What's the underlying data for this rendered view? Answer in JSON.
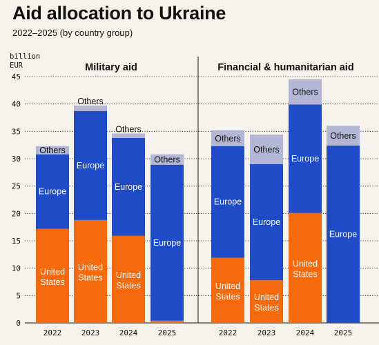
{
  "header": {
    "title": "Aid allocation to Ukraine",
    "subtitle": "2022–2025 (by country group)",
    "unit_line1": "billion",
    "unit_line2": "EUR"
  },
  "colors": {
    "united_states": "#f46a0c",
    "europe": "#1f4bc6",
    "others": "#b3b6d4",
    "background": "#f6f3ec"
  },
  "chart_data": [
    {
      "type": "bar",
      "stacked": true,
      "title": "Military aid",
      "categories": [
        "2022",
        "2023",
        "2024",
        "2025"
      ],
      "ylim": [
        0,
        45
      ],
      "yticks": [
        0,
        5,
        10,
        15,
        20,
        25,
        30,
        35,
        40,
        45
      ],
      "series": [
        {
          "name": "United States",
          "values": [
            17.2,
            18.8,
            15.9,
            0.4
          ]
        },
        {
          "name": "Europe",
          "values": [
            13.6,
            19.9,
            17.9,
            28.5
          ]
        },
        {
          "name": "Others",
          "values": [
            1.5,
            1.0,
            0.8,
            1.9
          ]
        }
      ]
    },
    {
      "type": "bar",
      "stacked": true,
      "title": "Financial & humanitarian aid",
      "categories": [
        "2022",
        "2023",
        "2024",
        "2025"
      ],
      "ylim": [
        0,
        45
      ],
      "series": [
        {
          "name": "United States",
          "values": [
            11.9,
            7.8,
            20.1,
            0
          ]
        },
        {
          "name": "Europe",
          "values": [
            20.4,
            21.2,
            19.8,
            32.4
          ]
        },
        {
          "name": "Others",
          "values": [
            2.9,
            5.4,
            4.6,
            3.6
          ]
        }
      ]
    }
  ]
}
